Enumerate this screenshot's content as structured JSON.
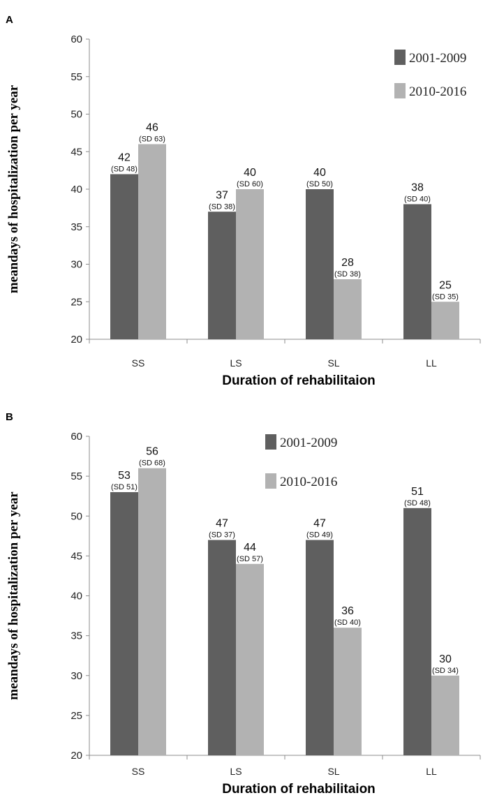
{
  "colors": {
    "series_2001_2009": "#5f5f5f",
    "series_2010_2016": "#b2b2b2",
    "axis": "#8c8c8c"
  },
  "chart_data": [
    {
      "panel": "A",
      "type": "bar",
      "categories": [
        "SS",
        "LS",
        "SL",
        "LL"
      ],
      "series": [
        {
          "name": "2001-2009",
          "values": [
            42,
            37,
            40,
            38
          ],
          "labels": [
            "42",
            "37",
            "40",
            "38"
          ],
          "sd_labels": [
            "(SD 48)",
            "(SD 38)",
            "(SD 50)",
            "(SD 40)"
          ]
        },
        {
          "name": "2010-2016",
          "values": [
            46,
            40,
            28,
            25
          ],
          "labels": [
            "46",
            "40",
            "28",
            "25"
          ],
          "sd_labels": [
            "(SD 63)",
            "(SD 60)",
            "(SD 38)",
            "(SD 35)"
          ]
        }
      ],
      "xlabel": "Duration of rehabilitaion",
      "ylabel": "meandays of hospitalization per year",
      "ylim": [
        20,
        60
      ],
      "yticks": [
        20,
        25,
        30,
        35,
        40,
        45,
        50,
        55,
        60
      ],
      "legend_position": "top-right"
    },
    {
      "panel": "B",
      "type": "bar",
      "categories": [
        "SS",
        "LS",
        "SL",
        "LL"
      ],
      "series": [
        {
          "name": "2001-2009",
          "values": [
            53,
            47,
            47,
            51
          ],
          "labels": [
            "53",
            "47",
            "47",
            "51"
          ],
          "sd_labels": [
            "(SD 51)",
            "(SD 37)",
            "(SD 49)",
            "(SD 48)"
          ]
        },
        {
          "name": "2010-2016",
          "values": [
            56,
            44,
            36,
            30
          ],
          "labels": [
            "56",
            "44",
            "36",
            "30"
          ],
          "sd_labels": [
            "(SD 68)",
            "(SD 57)",
            "(SD 40)",
            "(SD 34)"
          ]
        }
      ],
      "xlabel": "Duration of rehabilitaion",
      "ylabel": "meandays of hospitalization per year",
      "ylim": [
        20,
        60
      ],
      "yticks": [
        20,
        25,
        30,
        35,
        40,
        45,
        50,
        55,
        60
      ],
      "legend_position": "top-center"
    }
  ]
}
